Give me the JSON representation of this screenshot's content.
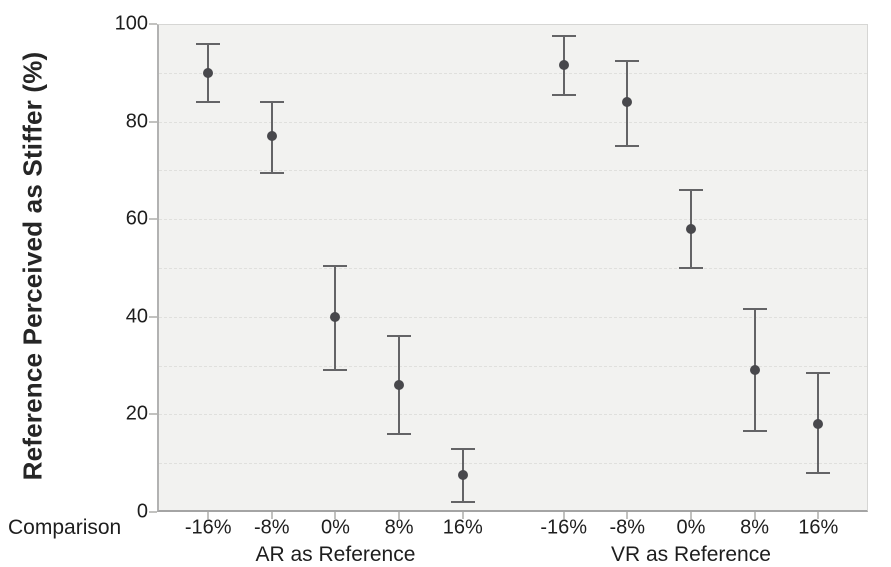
{
  "figure": {
    "y_axis_title": "Reference Perceived as Stiffer (%)",
    "x_axis_row_label": "Comparison"
  },
  "colors": {
    "plot_background": "#f2f2f0",
    "gridline": "#e0e0dd",
    "axis_line": "#b2b2b2",
    "tick_mark": "#c2c2c0",
    "point": "#48484c",
    "error_bar": "#646466",
    "text": "#1e1e1e"
  },
  "chart_data": {
    "type": "scatter",
    "title": "",
    "ylabel": "Reference Perceived as Stiffer (%)",
    "xlabel": "Comparison",
    "ylim": [
      0,
      100
    ],
    "yticks": [
      0,
      20,
      40,
      60,
      80,
      100
    ],
    "minor_gridline_step": 10,
    "grid": "horizontal dashed lines every 10",
    "legend": "none",
    "marker": "filled circle with vertical error bars (capped)",
    "groups": [
      {
        "label": "AR as Reference",
        "categories": [
          "-16%",
          "-8%",
          "0%",
          "8%",
          "16%"
        ],
        "means": [
          90,
          77,
          40,
          26,
          7.5
        ],
        "ci_low": [
          84,
          69.5,
          29,
          16,
          2
        ],
        "ci_high": [
          96,
          84,
          50.5,
          36,
          13
        ]
      },
      {
        "label": "VR as Reference",
        "categories": [
          "-16%",
          "-8%",
          "0%",
          "8%",
          "16%"
        ],
        "means": [
          91.5,
          84,
          58,
          29,
          18
        ],
        "ci_low": [
          85.5,
          75,
          50,
          16.5,
          8
        ],
        "ci_high": [
          97.5,
          92.5,
          66,
          41.5,
          28.5
        ]
      }
    ]
  }
}
